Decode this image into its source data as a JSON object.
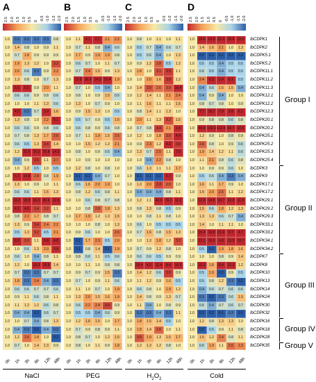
{
  "panels": [
    {
      "letter": "A",
      "condition": "NaCl"
    },
    {
      "letter": "B",
      "condition": "PEG"
    },
    {
      "letter": "C",
      "condition": "H2O2",
      "sub": "2"
    },
    {
      "letter": "D",
      "condition": "Cold"
    }
  ],
  "scale": [
    "2.5",
    "2.0",
    "1.5",
    "1.0",
    "0.5",
    "0",
    "-0.5",
    "-1.0",
    "-1.5",
    "-2.0"
  ],
  "time_points": [
    "0h",
    "1h",
    "3h",
    "6h",
    "12h",
    "48h"
  ],
  "genes": [
    "IbCDPK1",
    "IbCDPK2",
    "IbCDPK5.1",
    "IbCDPK5.2",
    "IbCDPK11.1",
    "IbCDPK11.2",
    "IbCDPK11.3",
    "IbCDPK12.1",
    "IbCDPK12.2",
    "IbCDPK12.3",
    "IbCDPK20.1",
    "IbCDPK20.2",
    "IbCDPK25.1",
    "IbCDPK25.2",
    "IbCDPK25.3",
    "IbCDPK25.4",
    "IbCDPK3",
    "IbCDPK9",
    "IbCDPK17.1",
    "IbCDPK17.2",
    "IbCDPK29.1",
    "IbCDPK29.2",
    "IbCDPK29.3",
    "IbCDPK33.1",
    "IbCDPK33.2",
    "IbCDPK34.1",
    "IbCDPK34.2",
    "IbCDPK7",
    "IbCDPK8",
    "IbCDPK10",
    "IbCDPK13",
    "IbCDPK14",
    "IbCDPK24",
    "IbCDPK30",
    "IbCDPK32",
    "IbCDPK16",
    "IbCDPK18",
    "IbCDPK28",
    "IbCDPK35"
  ],
  "groups": [
    {
      "name": "Group I",
      "start": 0,
      "end": 15
    },
    {
      "name": "Group II",
      "start": 16,
      "end": 26
    },
    {
      "name": "Group III",
      "start": 27,
      "end": 34
    },
    {
      "name": "Group IV",
      "start": 35,
      "end": 37
    },
    {
      "name": "Group V",
      "start": 38,
      "end": 38
    }
  ],
  "cell_values": [
    [
      [
        "1.0",
        "0.3",
        "0.3",
        "0.3",
        "0.3",
        "0.8"
      ],
      [
        "1.0",
        "1.1",
        "4.1",
        "6.7",
        "2.1",
        "2.2"
      ],
      [
        "1.0",
        "0.8",
        "1.0",
        "1.1",
        "1.0",
        "1.1"
      ],
      [
        "1.0",
        "18.6",
        "23.9",
        "21.0",
        "25.6",
        "12.0"
      ]
    ],
    [
      [
        "1.0",
        "1.4",
        "0.8",
        "1.0",
        "0.9",
        "1.1"
      ],
      [
        "1.0",
        "0.7",
        "1.1",
        "0.8",
        "0.4",
        "0.6"
      ],
      [
        "1.0",
        "0.5",
        "0.7",
        "0.4",
        "0.6",
        "0.7"
      ],
      [
        "1.0",
        "1.4",
        "1.6",
        "2.1",
        "1.0",
        "1.3"
      ]
    ],
    [
      [
        "1.0",
        "0.7",
        "1.8",
        "0.9",
        "0.9",
        "0.9"
      ],
      [
        "1.0",
        "1.7",
        "0.9",
        "1.9",
        "1.9",
        "0.8"
      ],
      [
        "1.0",
        "0.5",
        "0.6",
        "0.4",
        "1.0",
        "1.3"
      ],
      [
        "1.0",
        "0.2",
        "0.2",
        "0.2",
        "0.2",
        "0.2"
      ]
    ],
    [
      [
        "1.0",
        "1.9",
        "1.3",
        "1.2",
        "1.0",
        "3.2"
      ],
      [
        "1.0",
        "0.6",
        "0.7",
        "1.0",
        "1.1",
        "0.7"
      ],
      [
        "1.0",
        "0.9",
        "1.2",
        "2.8",
        "0.5",
        "1.2"
      ],
      [
        "1.0",
        "0.5",
        "0.5",
        "0.4",
        "0.5",
        "0.5"
      ]
    ],
    [
      [
        "1.0",
        "2.0",
        "0.6",
        "0.3",
        "0.9",
        "2.2"
      ],
      [
        "1.0",
        "0.7",
        "2.4",
        "1.5",
        "0.9",
        "1.3"
      ],
      [
        "1.0",
        "1.8",
        "1.0",
        "3.1",
        "3.5",
        "1.1"
      ],
      [
        "1.0",
        "0.6",
        "0.5",
        "0.4",
        "0.5",
        "0.5"
      ]
    ],
    [
      [
        "1.0",
        "1.3",
        "0.8",
        "1.0",
        "0.7",
        "1.3"
      ],
      [
        "1.0",
        "13.9",
        "20.6",
        "14.3",
        "23.4",
        "1.9"
      ],
      [
        "1.0",
        "1.0",
        "2.0",
        "1.6",
        "3.5",
        "1.2"
      ],
      [
        "1.0",
        "2.4",
        "6.3",
        "5.4",
        "8.1",
        "0.5"
      ]
    ],
    [
      [
        "1.0",
        "5.5",
        "5.5",
        "0.9",
        "2.0",
        "1.1"
      ],
      [
        "1.0",
        "0.7",
        "1.0",
        "0.5",
        "0.4",
        "1.0"
      ],
      [
        "1.0",
        "1.4",
        "3.0",
        "2.6",
        "3.0",
        "16.4"
      ],
      [
        "1.0",
        "0.4",
        "0.6",
        "1.6",
        "1.5",
        "0.4"
      ]
    ],
    [
      [
        "1.0",
        "0.6",
        "0.6",
        "0.9",
        "0.8",
        "0.6"
      ],
      [
        "1.0",
        "0.8",
        "1.0",
        "0.9",
        "1.5",
        "0.6"
      ],
      [
        "1.0",
        "1.2",
        "1.4",
        "1.1",
        "2.1",
        "2.4"
      ],
      [
        "1.0",
        "0.4",
        "0.9",
        "0.4",
        "1.0",
        "1.0"
      ]
    ],
    [
      [
        "1.0",
        "1.0",
        "1.0",
        "1.1",
        "1.3",
        "0.6"
      ],
      [
        "1.0",
        "1.3",
        "1.0",
        "0.7",
        "0.9",
        "1.0"
      ],
      [
        "1.0",
        "1.1",
        "1.6",
        "1.1",
        "1.1",
        "1.5"
      ],
      [
        "1.0",
        "0.8",
        "0.7",
        "0.8",
        "1.0",
        "0.9"
      ]
    ],
    [
      [
        "1.0",
        "4.5",
        "0.3",
        "0.7",
        "3.9",
        "1.6"
      ],
      [
        "1.0",
        "0.9",
        "1.5",
        "1.3",
        "1.0",
        "0.5"
      ],
      [
        "1.0",
        "0.8",
        "1.4",
        "1.1",
        "1.3",
        "1.0"
      ],
      [
        "1.0",
        "7.7",
        "18.7",
        "7.9",
        "9.8",
        "6.1"
      ]
    ],
    [
      [
        "1.0",
        "1.3",
        "0.8",
        "1.0",
        "2.2",
        "5.1"
      ],
      [
        "1.0",
        "0.5",
        "0.7",
        "0.9",
        "0.5",
        "1.6"
      ],
      [
        "1.0",
        "2.0",
        "1.1",
        "1.3",
        "3.2",
        "1.5"
      ],
      [
        "1.0",
        "0.9",
        "0.8",
        "0.8",
        "0.6",
        "0.8"
      ]
    ],
    [
      [
        "1.0",
        "0.6",
        "0.6",
        "0.9",
        "0.8",
        "0.6"
      ],
      [
        "1.0",
        "0.6",
        "0.8",
        "0.9",
        "0.6",
        "0.8"
      ],
      [
        "1.0",
        "0.7",
        "0.8",
        "3.4",
        "2.1",
        "3.9"
      ],
      [
        "1.0",
        "49.9",
        "102.0",
        "113.5",
        "42.7",
        "10.5"
      ]
    ],
    [
      [
        "1.0",
        "0.7",
        "0.8",
        "1.3",
        "1.7",
        "2.8"
      ],
      [
        "1.0",
        "0.7",
        "1.1",
        "1.9",
        "1.5",
        "2.6"
      ],
      [
        "1.0",
        "1.2",
        "1.0",
        "1.8",
        "3.0",
        "4.4"
      ],
      [
        "1.0",
        "1.2",
        "0.9",
        "1.0",
        "0.8",
        "0.9"
      ]
    ],
    [
      [
        "1.0",
        "0.6",
        "0.5",
        "1.3",
        "3.4",
        "1.4"
      ],
      [
        "1.0",
        "1.0",
        "1.5",
        "1.2",
        "1.2",
        "2.1"
      ],
      [
        "1.0",
        "0.9",
        "2.3",
        "1.2",
        "4.2",
        "3.6"
      ],
      [
        "1.0",
        "2.8",
        "0.8",
        "1.0",
        "0.9",
        "0.6"
      ]
    ],
    [
      [
        "1.0",
        "1.2",
        "21.5",
        "15.2",
        "20.8",
        "14.3"
      ],
      [
        "1.0",
        "0.8",
        "1.0",
        "0.9",
        "0.6",
        "0.4"
      ],
      [
        "1.0",
        "1.3",
        "0.7",
        "2.5",
        "1.1",
        "7.6"
      ],
      [
        "1.0",
        "1.9",
        "1.4",
        "1.2",
        "1.1",
        "0.6"
      ]
    ],
    [
      [
        "1.0",
        "0.4",
        "0.9",
        "3.5",
        "1.1",
        "2.7"
      ],
      [
        "1.0",
        "1.0",
        "0.9",
        "1.0",
        "1.0",
        "1.0"
      ],
      [
        "1.0",
        "1.0",
        "0.4",
        "2.2",
        "0.8",
        "1.0"
      ],
      [
        "1.0",
        "1.1",
        "2.1",
        "0.8",
        "0.6",
        "0.8"
      ]
    ],
    [
      [
        "1.0",
        "1.0",
        "1.2",
        "0.5",
        "1.0",
        "0.5"
      ],
      [
        "1.0",
        "1.2",
        "0.8",
        "1.0",
        "0.8",
        "1.0"
      ],
      [
        "1.0",
        "0.6",
        "1.3",
        "1.1",
        "1.1",
        "1.7"
      ],
      [
        "1.0",
        "1.0",
        "0.9",
        "0.9",
        "0.6",
        "1.0"
      ]
    ],
    [
      [
        "1.0",
        "5.7",
        "14.8",
        "2.8",
        "0.8",
        "1.9"
      ],
      [
        "1.0",
        "0.1",
        "0.1",
        "0.4",
        "0.7",
        "1.0"
      ],
      [
        "1.0",
        "0.1",
        "0.1",
        "0.1",
        "6.7",
        "0.9"
      ],
      [
        "1.0",
        "0.5",
        "0.6",
        "0.4",
        "0.3",
        "0.4"
      ]
    ],
    [
      [
        "1.0",
        "1.3",
        "1.0",
        "0.9",
        "1.0",
        "1.1"
      ],
      [
        "1.0",
        "0.6",
        "1.6",
        "2.0",
        "1.9",
        "1.0"
      ],
      [
        "1.0",
        "1.3",
        "2.0",
        "3.3",
        "2.9",
        "1.0"
      ],
      [
        "1.0",
        "1.6",
        "1.1",
        "1.7",
        "0.9",
        "1.0"
      ]
    ],
    [
      [
        "1.0",
        "0.6",
        "0.6",
        "1.1",
        "1.5",
        "1.3"
      ],
      [
        "1.0",
        "0.8",
        "1.2",
        "0.6",
        "0.8",
        "1.1"
      ],
      [
        "1.0",
        "0.4",
        "0.4",
        "0.4",
        "0.8",
        "1.1"
      ],
      [
        "1.0",
        "1.5",
        "2.0",
        "2.6",
        "1.1",
        "1.2"
      ]
    ],
    [
      [
        "1.0",
        "11.0",
        "18.8",
        "26.0",
        "30.6",
        "12.5"
      ],
      [
        "1.0",
        "1.0",
        "0.6",
        "0.8",
        "0.7",
        "0.8"
      ],
      [
        "1.0",
        "1.2",
        "1.1",
        "42.0",
        "78.1",
        "11.6"
      ],
      [
        "1.0",
        "12.9",
        "14.5",
        "10.7",
        "12.0",
        "11.6"
      ]
    ],
    [
      [
        "1.0",
        "4.1",
        "4.6",
        "3.4",
        "3.2",
        "1.1"
      ],
      [
        "1.0",
        "1.0",
        "0.8",
        "2.8",
        "1.8",
        "1.3"
      ],
      [
        "1.0",
        "0.8",
        "1.3",
        "0.8",
        "0.5",
        "0.9"
      ],
      [
        "1.0",
        "1.5",
        "0.6",
        "1.8",
        "1.2",
        "1.3"
      ]
    ],
    [
      [
        "1.0",
        "0.8",
        "2.2",
        "1.7",
        "0.8",
        "0.7"
      ],
      [
        "1.0",
        "1.7",
        "1.9",
        "1.2",
        "1.3",
        "1.5"
      ],
      [
        "1.0",
        "1.0",
        "0.8",
        "1.1",
        "0.8",
        "1.0"
      ],
      [
        "1.0",
        "1.3",
        "1.3",
        "0.6",
        "0.7",
        "0.4"
      ]
    ],
    [
      [
        "1.0",
        "1.3",
        "0.9",
        "3.4",
        "2.4",
        "2.2"
      ],
      [
        "1.0",
        "1.0",
        "1.0",
        "0.8",
        "1.0",
        "1.3"
      ],
      [
        "1.0",
        "0.6",
        "1.0",
        "0.5",
        "0.5",
        "0.5"
      ],
      [
        "1.0",
        "1.4",
        "1.0",
        "1.1",
        "1.1",
        "1.0"
      ]
    ],
    [
      [
        "1.0",
        "0.5",
        "1.3",
        "3.2",
        "0.5",
        "2.1"
      ],
      [
        "1.0",
        "0.9",
        "0.6",
        "1.0",
        "1.0",
        "2.6"
      ],
      [
        "1.0",
        "0.7",
        "1.6",
        "0.8",
        "1.5",
        "1.3"
      ],
      [
        "1.0",
        "15.4",
        "19.8",
        "21.6",
        "9.7",
        "4.7"
      ]
    ],
    [
      [
        "1.0",
        "8.3",
        "3.2",
        "1.1",
        "6.8",
        "4.8"
      ],
      [
        "1.0",
        "0.1",
        "1.7",
        "2.3",
        "0.5",
        "2.0"
      ],
      [
        "1.0",
        "1.0",
        "1.3",
        "1.8",
        "1.2",
        "3.2"
      ],
      [
        "1.0",
        "22.1",
        "19.6",
        "6.8",
        "13.5",
        "10.7"
      ]
    ],
    [
      [
        "1.0",
        "1.0",
        "0.6",
        "1.3",
        "2.0",
        "3.8"
      ],
      [
        "1.0",
        "0.1",
        "0.8",
        "1.4",
        "0.1",
        "1.9"
      ],
      [
        "1.0",
        "0.7",
        "0.9",
        "1.2",
        "0.8",
        "1.0"
      ],
      [
        "1.0",
        "0.5",
        "0.2",
        "1.9",
        "1.8",
        "1.6"
      ]
    ],
    [
      [
        "1.0",
        "0.6",
        "1.0",
        "0.4",
        "0.8",
        "1.1"
      ],
      [
        "1.0",
        "0.8",
        "0.6",
        "1.1",
        "0.5",
        "0.6"
      ],
      [
        "1.0",
        "0.6",
        "0.6",
        "0.5",
        "0.9",
        "0.9"
      ],
      [
        "1.0",
        "1.0",
        "1.0",
        "0.8",
        "0.9",
        "1.4"
      ]
    ],
    [
      [
        "1.0",
        "1.2",
        "1.0",
        "16.3",
        "19.8",
        "1.4"
      ],
      [
        "1.0",
        "1.0",
        "1.1",
        "1.0",
        "0.8",
        "0.8"
      ],
      [
        "1.0",
        "16.4",
        "4.3",
        "11.4",
        "8.4",
        "16.0"
      ],
      [
        "1.0",
        "10.3",
        "1.8",
        "8.4",
        "12.3",
        "1.2"
      ]
    ],
    [
      [
        "1.0",
        "0.7",
        "0.3",
        "0.3",
        "0.7",
        "0.7"
      ],
      [
        "1.0",
        "0.9",
        "0.7",
        "0.9",
        "1.5",
        "0.3"
      ],
      [
        "1.0",
        "1.4",
        "1.2",
        "0.6",
        "3.5",
        "0.9"
      ],
      [
        "1.0",
        "0.5",
        "1.9",
        "0.2",
        "0.9",
        "0.5"
      ]
    ],
    [
      [
        "1.0",
        "1.8",
        "0.3",
        "2.4",
        "0.4",
        "0.3"
      ],
      [
        "1.0",
        "0.7",
        "1.0",
        "0.9",
        "1.1",
        "0.6"
      ],
      [
        "1.0",
        "1.1",
        "1.2",
        "0.9",
        "1.6",
        "0.5"
      ],
      [
        "1.0",
        "0.5",
        "0.8",
        "1.2",
        "0.3",
        "0.1"
      ]
    ],
    [
      [
        "1.0",
        "0.6",
        "0.6",
        "0.7",
        "0.7",
        "0.6"
      ],
      [
        "1.0",
        "1.1",
        "1.0",
        "0.7",
        "1.0",
        "1.9"
      ],
      [
        "1.0",
        "0.6",
        "0.8",
        "1.0",
        "1.9",
        "1.2"
      ],
      [
        "1.0",
        "0.4",
        "0.6",
        "0.7",
        "0.6",
        "0.6"
      ]
    ],
    [
      [
        "1.0",
        "0.9",
        "1.1",
        "0.6",
        "0.8",
        "1.1"
      ],
      [
        "1.0",
        "1.3",
        "2.0",
        "1.5",
        "1.6",
        "1.9"
      ],
      [
        "1.0",
        "1.4",
        "0.8",
        "0.9",
        "1.3",
        "0.7"
      ],
      [
        "1.0",
        "0.3",
        "0.2",
        "0.3",
        "0.6",
        "1.5"
      ]
    ],
    [
      [
        "1.0",
        "1.1",
        "1.2",
        "1.2",
        "0.6",
        "0.8"
      ],
      [
        "1.0",
        "0.6",
        "2.2",
        "2.4",
        "3.4",
        "0.9"
      ],
      [
        "1.0",
        "1.1",
        "0.4",
        "1.0",
        "0.8",
        "0.9"
      ],
      [
        "1.0",
        "0.6",
        "0.4",
        "0.7",
        "0.6",
        "0.7"
      ]
    ],
    [
      [
        "1.0",
        "0.4",
        "0.4",
        "0.2",
        "0.6",
        "0.7"
      ],
      [
        "1.0",
        "0.5",
        "0.5",
        "0.4",
        "0.6",
        "0.9"
      ],
      [
        "1.0",
        "0.3",
        "0.3",
        "0.4",
        "0.3",
        "1.1"
      ],
      [
        "1.0",
        "0.2",
        "0.2",
        "0.1",
        "0.3",
        "0.2"
      ]
    ],
    [
      [
        "1.0",
        "1.0",
        "0.7",
        "0.4",
        "0.8",
        "1.3"
      ],
      [
        "1.0",
        "1.2",
        "1.6",
        "1.5",
        "1.0",
        "1.7"
      ],
      [
        "1.0",
        "1.8",
        "1.5",
        "1.4",
        "0.5",
        "1.0"
      ],
      [
        "1.0",
        "1.2",
        "0.8",
        "1.3",
        "1.3",
        "1.0"
      ]
    ],
    [
      [
        "1.0",
        "0.4",
        "0.3",
        "0.2",
        "0.4",
        "0.3"
      ],
      [
        "1.0",
        "0.7",
        "0.9",
        "0.8",
        "0.9",
        "1.1"
      ],
      [
        "1.0",
        "1.8",
        "1.4",
        "2.8",
        "1.0",
        "1.1"
      ],
      [
        "1.0",
        "0.2",
        "0.5",
        "0.9",
        "1.1",
        "0.8"
      ]
    ],
    [
      [
        "1.0",
        "1.2",
        "2.6",
        "1.8",
        "1.0",
        "0.2"
      ],
      [
        "1.0",
        "0.8",
        "0.7",
        "1.0",
        "1.2",
        "1.5"
      ],
      [
        "1.0",
        "3.0",
        "1.9",
        "1.3",
        "1.5",
        "1.7"
      ],
      [
        "1.0",
        "1.5",
        "1.2",
        "2.4",
        "0.8",
        "1.1"
      ]
    ],
    [
      [
        "1.0",
        "0.7",
        "1.0",
        "1.4",
        "1.3",
        "0.9"
      ],
      [
        "1.0",
        "0.8",
        "1.0",
        "1.1",
        "0.9",
        "1.8"
      ],
      [
        "1.0",
        "1.2",
        "1.3",
        "1.2",
        "0.8",
        "1.0"
      ],
      [
        "1.0",
        "0.6",
        "1.9",
        "1.1",
        "2.6",
        "2.3"
      ]
    ]
  ],
  "colors": {
    "low": "#2b5da8",
    "mid": "#f7e9a6",
    "high": "#c0272d"
  }
}
